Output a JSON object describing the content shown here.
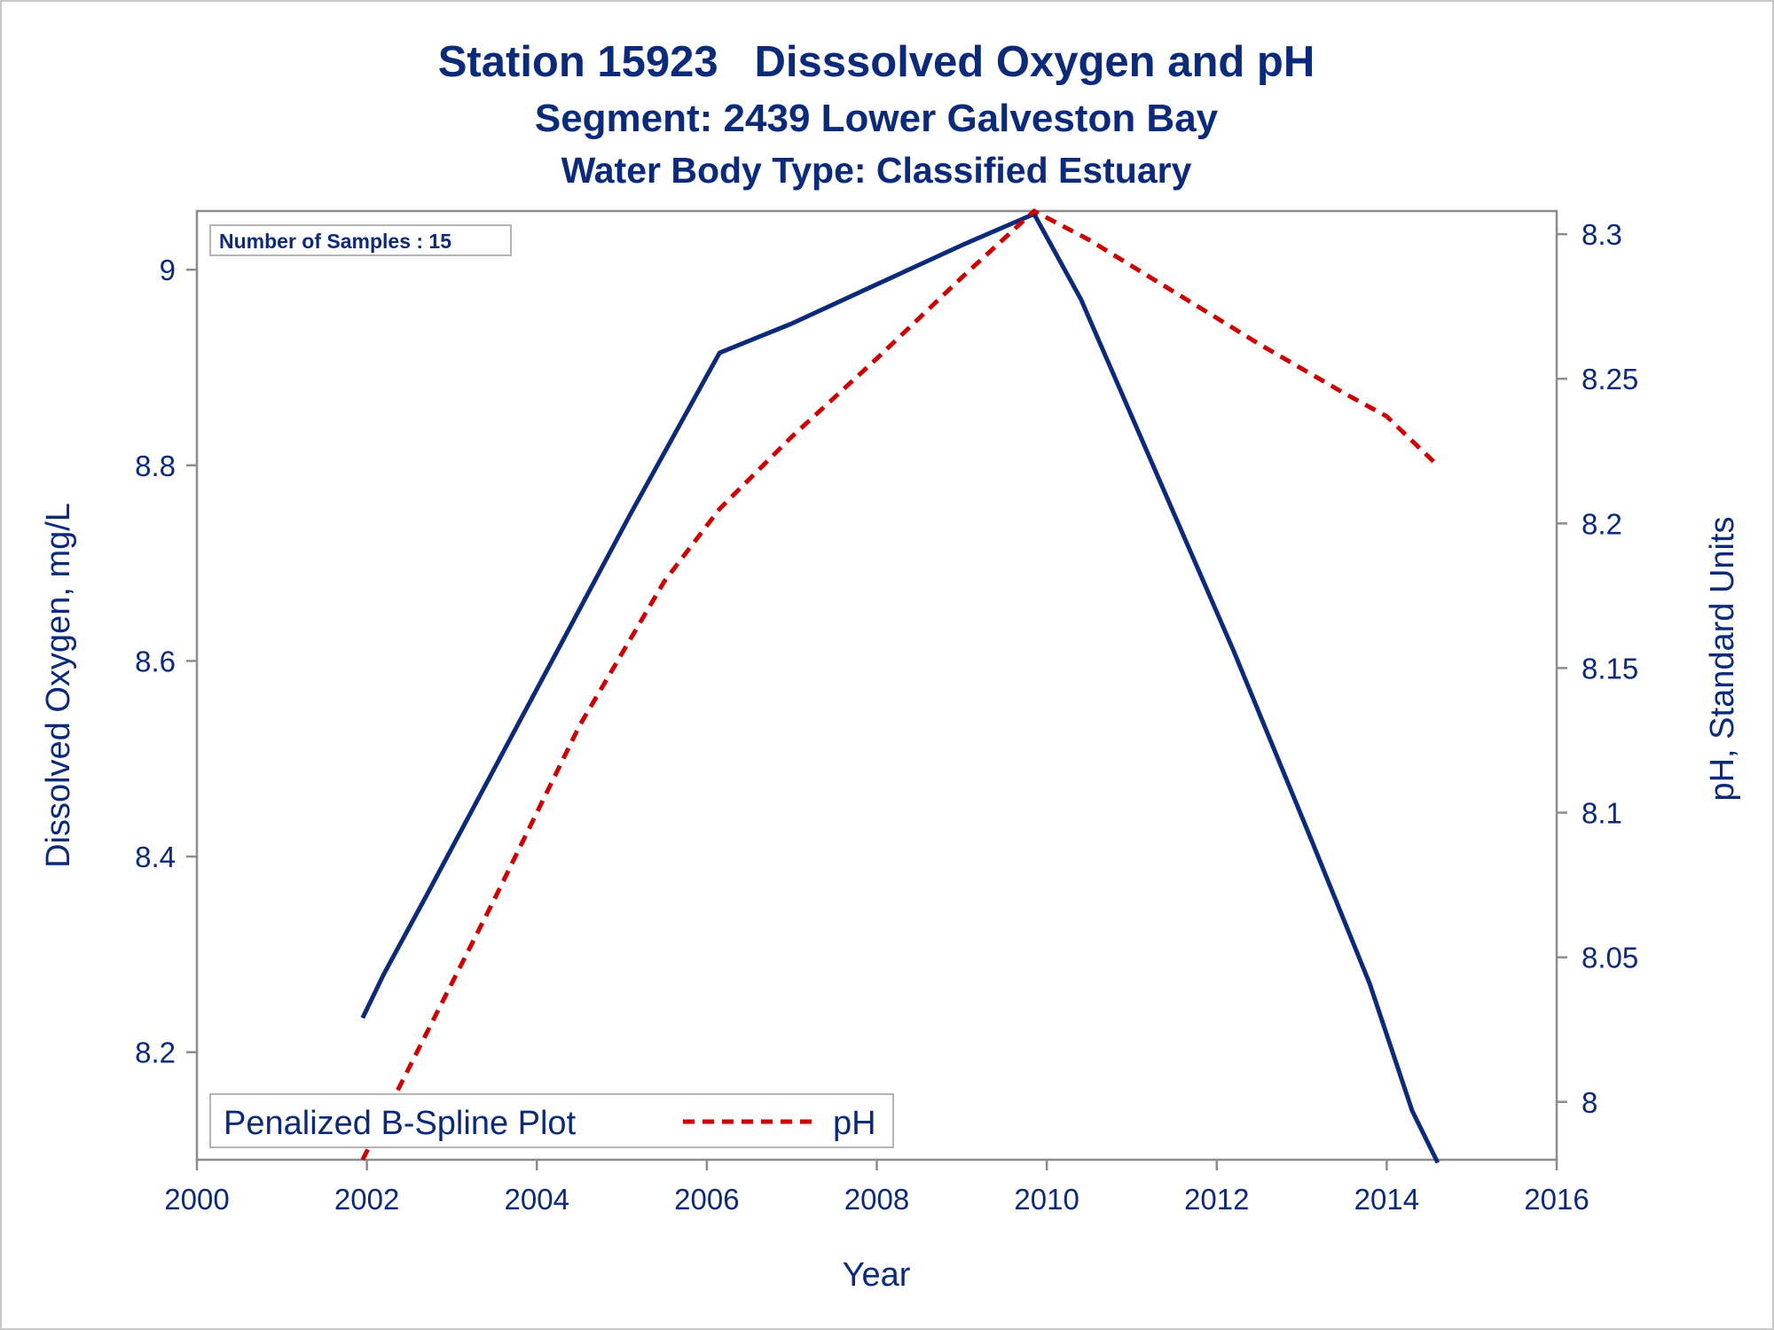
{
  "chart_data": {
    "type": "line",
    "title": "Station 15923   Disssolved Oxygen and pH",
    "subtitle": "Segment: 2439  Lower Galveston Bay",
    "subtitle2": "Water Body Type: Classified Estuary",
    "xlabel": "Year",
    "ylabel": "Dissolved Oxygen, mg/L",
    "y2label": "pH, Standard Units",
    "xlim": [
      2000,
      2016
    ],
    "ylim": [
      8.09,
      9.06
    ],
    "y2lim": [
      7.98,
      8.308
    ],
    "x_ticks": [
      "2000",
      "2002",
      "2004",
      "2006",
      "2008",
      "2010",
      "2012",
      "2014",
      "2016"
    ],
    "y_ticks": [
      "8.2",
      "8.4",
      "8.6",
      "8.8",
      "9"
    ],
    "y2_ticks": [
      "8",
      "8.05",
      "8.1",
      "8.15",
      "8.2",
      "8.25",
      "8.3"
    ],
    "inset_text": "Number of Samples : 15",
    "legend": {
      "title": "Penalized B-Spline Plot",
      "entries": [
        "pH"
      ],
      "position": "bottom-left"
    },
    "grid": false,
    "colors": {
      "oxygen": "#0b2a7a",
      "ph": "#cc0000",
      "text": "#0b2a7a",
      "axis": "#8c8c8c"
    },
    "series": [
      {
        "axis": "left",
        "style": "solid",
        "color": "#0b2a7a",
        "points": [
          [
            2001.95,
            8.235
          ],
          [
            2002.2,
            8.28
          ],
          [
            2002.7,
            8.36
          ],
          [
            2003.5,
            8.49
          ],
          [
            2004.3,
            8.62
          ],
          [
            2005.1,
            8.75
          ],
          [
            2005.8,
            8.86
          ],
          [
            2006.15,
            8.915
          ],
          [
            2007.0,
            8.945
          ],
          [
            2008.0,
            8.985
          ],
          [
            2009.0,
            9.025
          ],
          [
            2009.85,
            9.057
          ],
          [
            2010.4,
            8.97
          ],
          [
            2011.2,
            8.81
          ],
          [
            2012.2,
            8.61
          ],
          [
            2013.1,
            8.42
          ],
          [
            2013.8,
            8.27
          ],
          [
            2014.3,
            8.14
          ],
          [
            2014.6,
            8.087
          ]
        ]
      },
      {
        "axis": "right",
        "name": "pH",
        "style": "dashed",
        "color": "#cc0000",
        "points": [
          [
            2001.95,
            7.98
          ],
          [
            2002.5,
            8.012
          ],
          [
            2003.5,
            8.07
          ],
          [
            2004.5,
            8.13
          ],
          [
            2005.5,
            8.18
          ],
          [
            2006.15,
            8.205
          ],
          [
            2007.0,
            8.23
          ],
          [
            2008.0,
            8.257
          ],
          [
            2009.0,
            8.285
          ],
          [
            2009.85,
            8.308
          ],
          [
            2010.5,
            8.298
          ],
          [
            2011.5,
            8.28
          ],
          [
            2012.5,
            8.262
          ],
          [
            2013.5,
            8.245
          ],
          [
            2014.0,
            8.237
          ],
          [
            2014.6,
            8.22
          ]
        ]
      }
    ]
  }
}
